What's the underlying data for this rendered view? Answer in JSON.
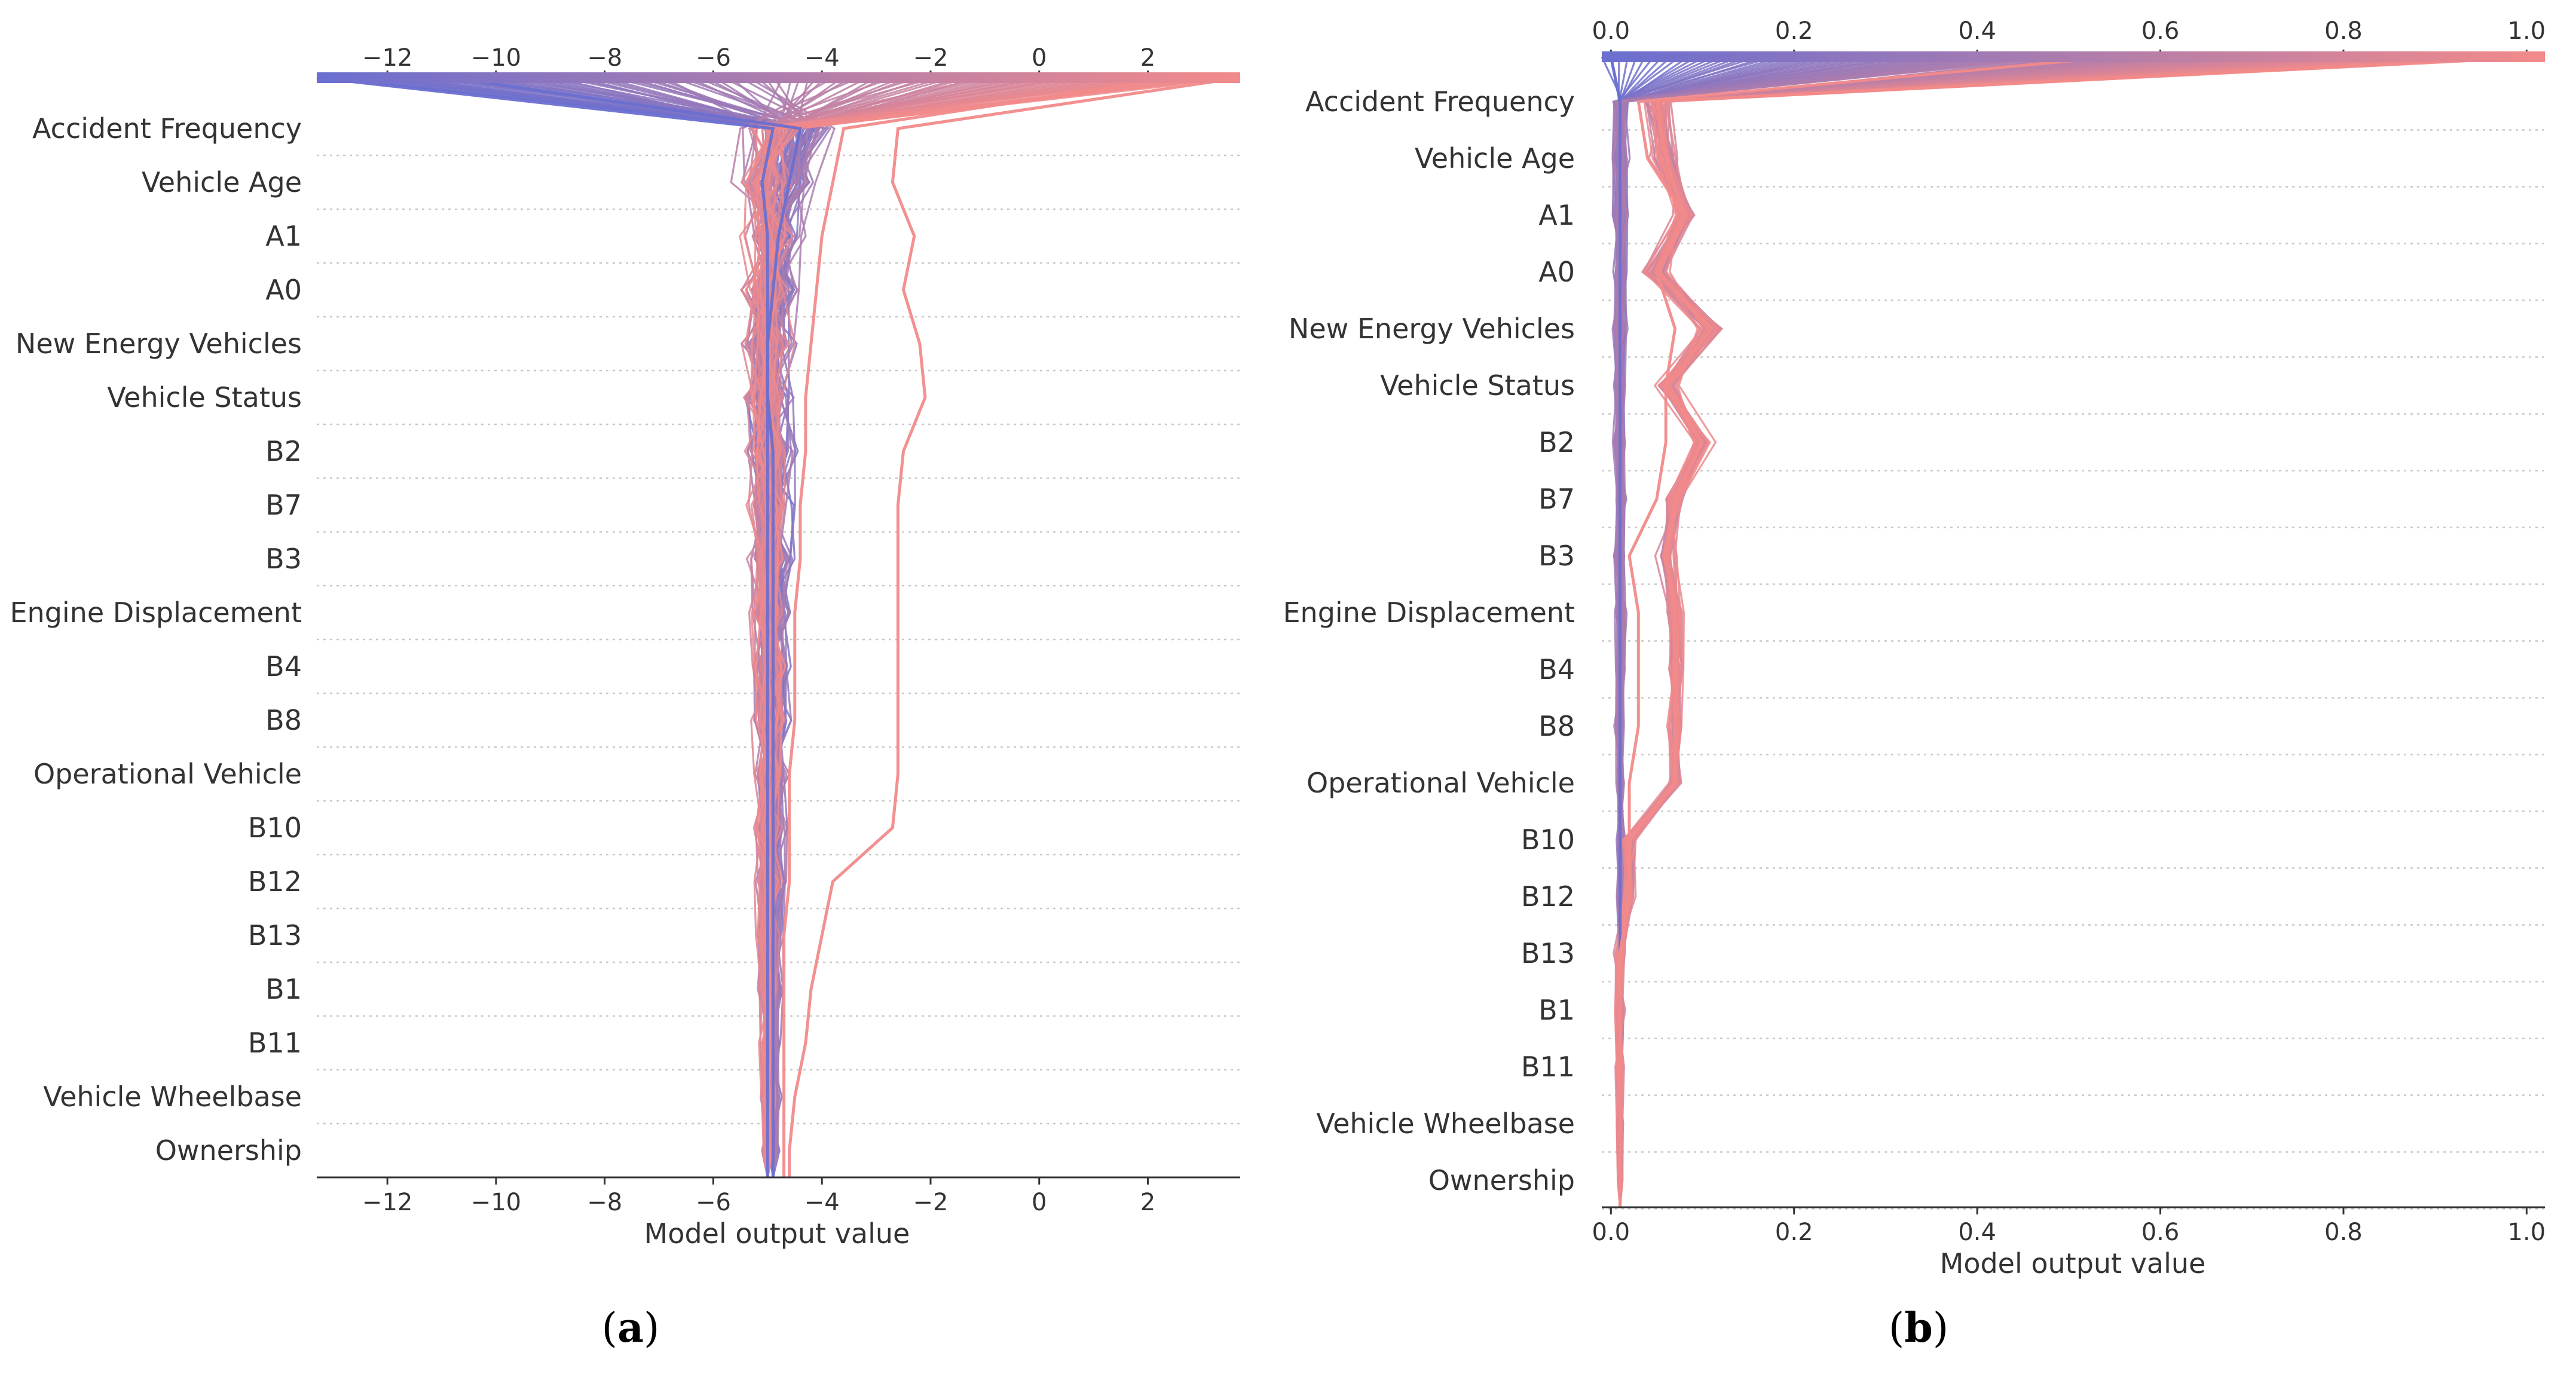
{
  "chart_data": [
    {
      "panel": "a",
      "type": "line",
      "subtype": "shap-decision-plot",
      "xlabel": "Model output value",
      "ticks": [
        -12,
        -10,
        -8,
        -6,
        -4,
        -2,
        0,
        2
      ],
      "xlim": [
        -13.3,
        3.7
      ],
      "features": [
        "Accident Frequency",
        "Vehicle Age",
        "A1",
        "A0",
        "New Energy Vehicles",
        "Vehicle Status",
        "B2",
        "B7",
        "B3",
        "Engine Displacement",
        "B4",
        "B8",
        "Operational Vehicle",
        "B10",
        "B12",
        "B13",
        "B1",
        "B11",
        "Vehicle Wheelbase",
        "Ownership"
      ],
      "colorbar": {
        "low": "#6a6fd0",
        "high": "#f28a8a"
      },
      "series_summary": {
        "base_value": -4.8,
        "output_range_top": [
          -13.3,
          3.7
        ],
        "representative_paths": [
          {
            "name": "low-output bundle",
            "top_value": -10.8,
            "values_by_feature": [
              -4.4,
              -4.6,
              -4.8,
              -4.9,
              -5.0,
              -5.0,
              -4.9,
              -4.9,
              -4.9,
              -4.9,
              -4.9,
              -4.9,
              -4.9,
              -4.9,
              -4.9,
              -4.9,
              -4.9,
              -4.9,
              -4.9,
              -4.9
            ]
          },
          {
            "name": "extreme low path",
            "top_value": -13.3,
            "values_by_feature": [
              -4.9,
              -5.1,
              -5.0,
              -5.0,
              -5.0,
              -5.0,
              -5.0,
              -5.0,
              -5.0,
              -5.0,
              -5.0,
              -5.0,
              -5.0,
              -5.0,
              -5.0,
              -5.0,
              -5.0,
              -5.0,
              -5.0,
              -5.0
            ]
          },
          {
            "name": "high-output bundle",
            "top_value": 2.5,
            "values_by_feature": [
              -3.6,
              -3.8,
              -4.0,
              -4.1,
              -4.2,
              -4.3,
              -4.3,
              -4.4,
              -4.4,
              -4.5,
              -4.5,
              -4.5,
              -4.6,
              -4.6,
              -4.6,
              -4.7,
              -4.7,
              -4.7,
              -4.7,
              -4.7
            ]
          },
          {
            "name": "extreme high path",
            "top_value": 3.7,
            "values_by_feature": [
              -2.6,
              -2.7,
              -2.3,
              -2.5,
              -2.2,
              -2.1,
              -2.5,
              -2.6,
              -2.6,
              -2.6,
              -2.6,
              -2.6,
              -2.6,
              -2.7,
              -3.8,
              -4.0,
              -4.2,
              -4.3,
              -4.5,
              -4.6
            ]
          }
        ]
      }
    },
    {
      "panel": "b",
      "type": "line",
      "subtype": "shap-decision-plot",
      "xlabel": "Model output value",
      "ticks": [
        0.0,
        0.2,
        0.4,
        0.6,
        0.8,
        1.0
      ],
      "tick_labels": [
        "0.0",
        "0.2",
        "0.4",
        "0.6",
        "0.8",
        "1.0"
      ],
      "xlim": [
        -0.01,
        1.02
      ],
      "features": [
        "Accident Frequency",
        "Vehicle Age",
        "A1",
        "A0",
        "New Energy Vehicles",
        "Vehicle Status",
        "B2",
        "B7",
        "B3",
        "Engine Displacement",
        "B4",
        "B8",
        "Operational Vehicle",
        "B10",
        "B12",
        "B13",
        "B1",
        "B11",
        "Vehicle Wheelbase",
        "Ownership"
      ],
      "colorbar": {
        "low": "#6a6fd0",
        "high": "#f28a8a"
      },
      "series_summary": {
        "base_value": 0.01,
        "output_range_top": [
          -0.01,
          1.02
        ],
        "representative_paths": [
          {
            "name": "low-output bundle",
            "top_value": 0.0,
            "values_by_feature": [
              0.01,
              0.01,
              0.01,
              0.01,
              0.01,
              0.01,
              0.01,
              0.01,
              0.01,
              0.01,
              0.01,
              0.01,
              0.01,
              0.01,
              0.01,
              0.01,
              0.01,
              0.01,
              0.01,
              0.01
            ]
          },
          {
            "name": "high-output bundle",
            "top_value": 1.02,
            "values_by_feature": [
              0.05,
              0.06,
              0.08,
              0.05,
              0.11,
              0.06,
              0.1,
              0.07,
              0.06,
              0.07,
              0.07,
              0.07,
              0.07,
              0.02,
              0.02,
              0.01,
              0.01,
              0.01,
              0.01,
              0.01
            ]
          },
          {
            "name": "mid-output path",
            "top_value": 0.55,
            "values_by_feature": [
              0.03,
              0.04,
              0.08,
              0.05,
              0.07,
              0.06,
              0.06,
              0.05,
              0.02,
              0.03,
              0.03,
              0.03,
              0.02,
              0.02,
              0.02,
              0.01,
              0.01,
              0.01,
              0.01,
              0.01
            ]
          }
        ]
      }
    }
  ],
  "panel_labels": [
    {
      "open": "(",
      "letter": "a",
      "close": ")"
    },
    {
      "open": "(",
      "letter": "b",
      "close": ")"
    }
  ]
}
